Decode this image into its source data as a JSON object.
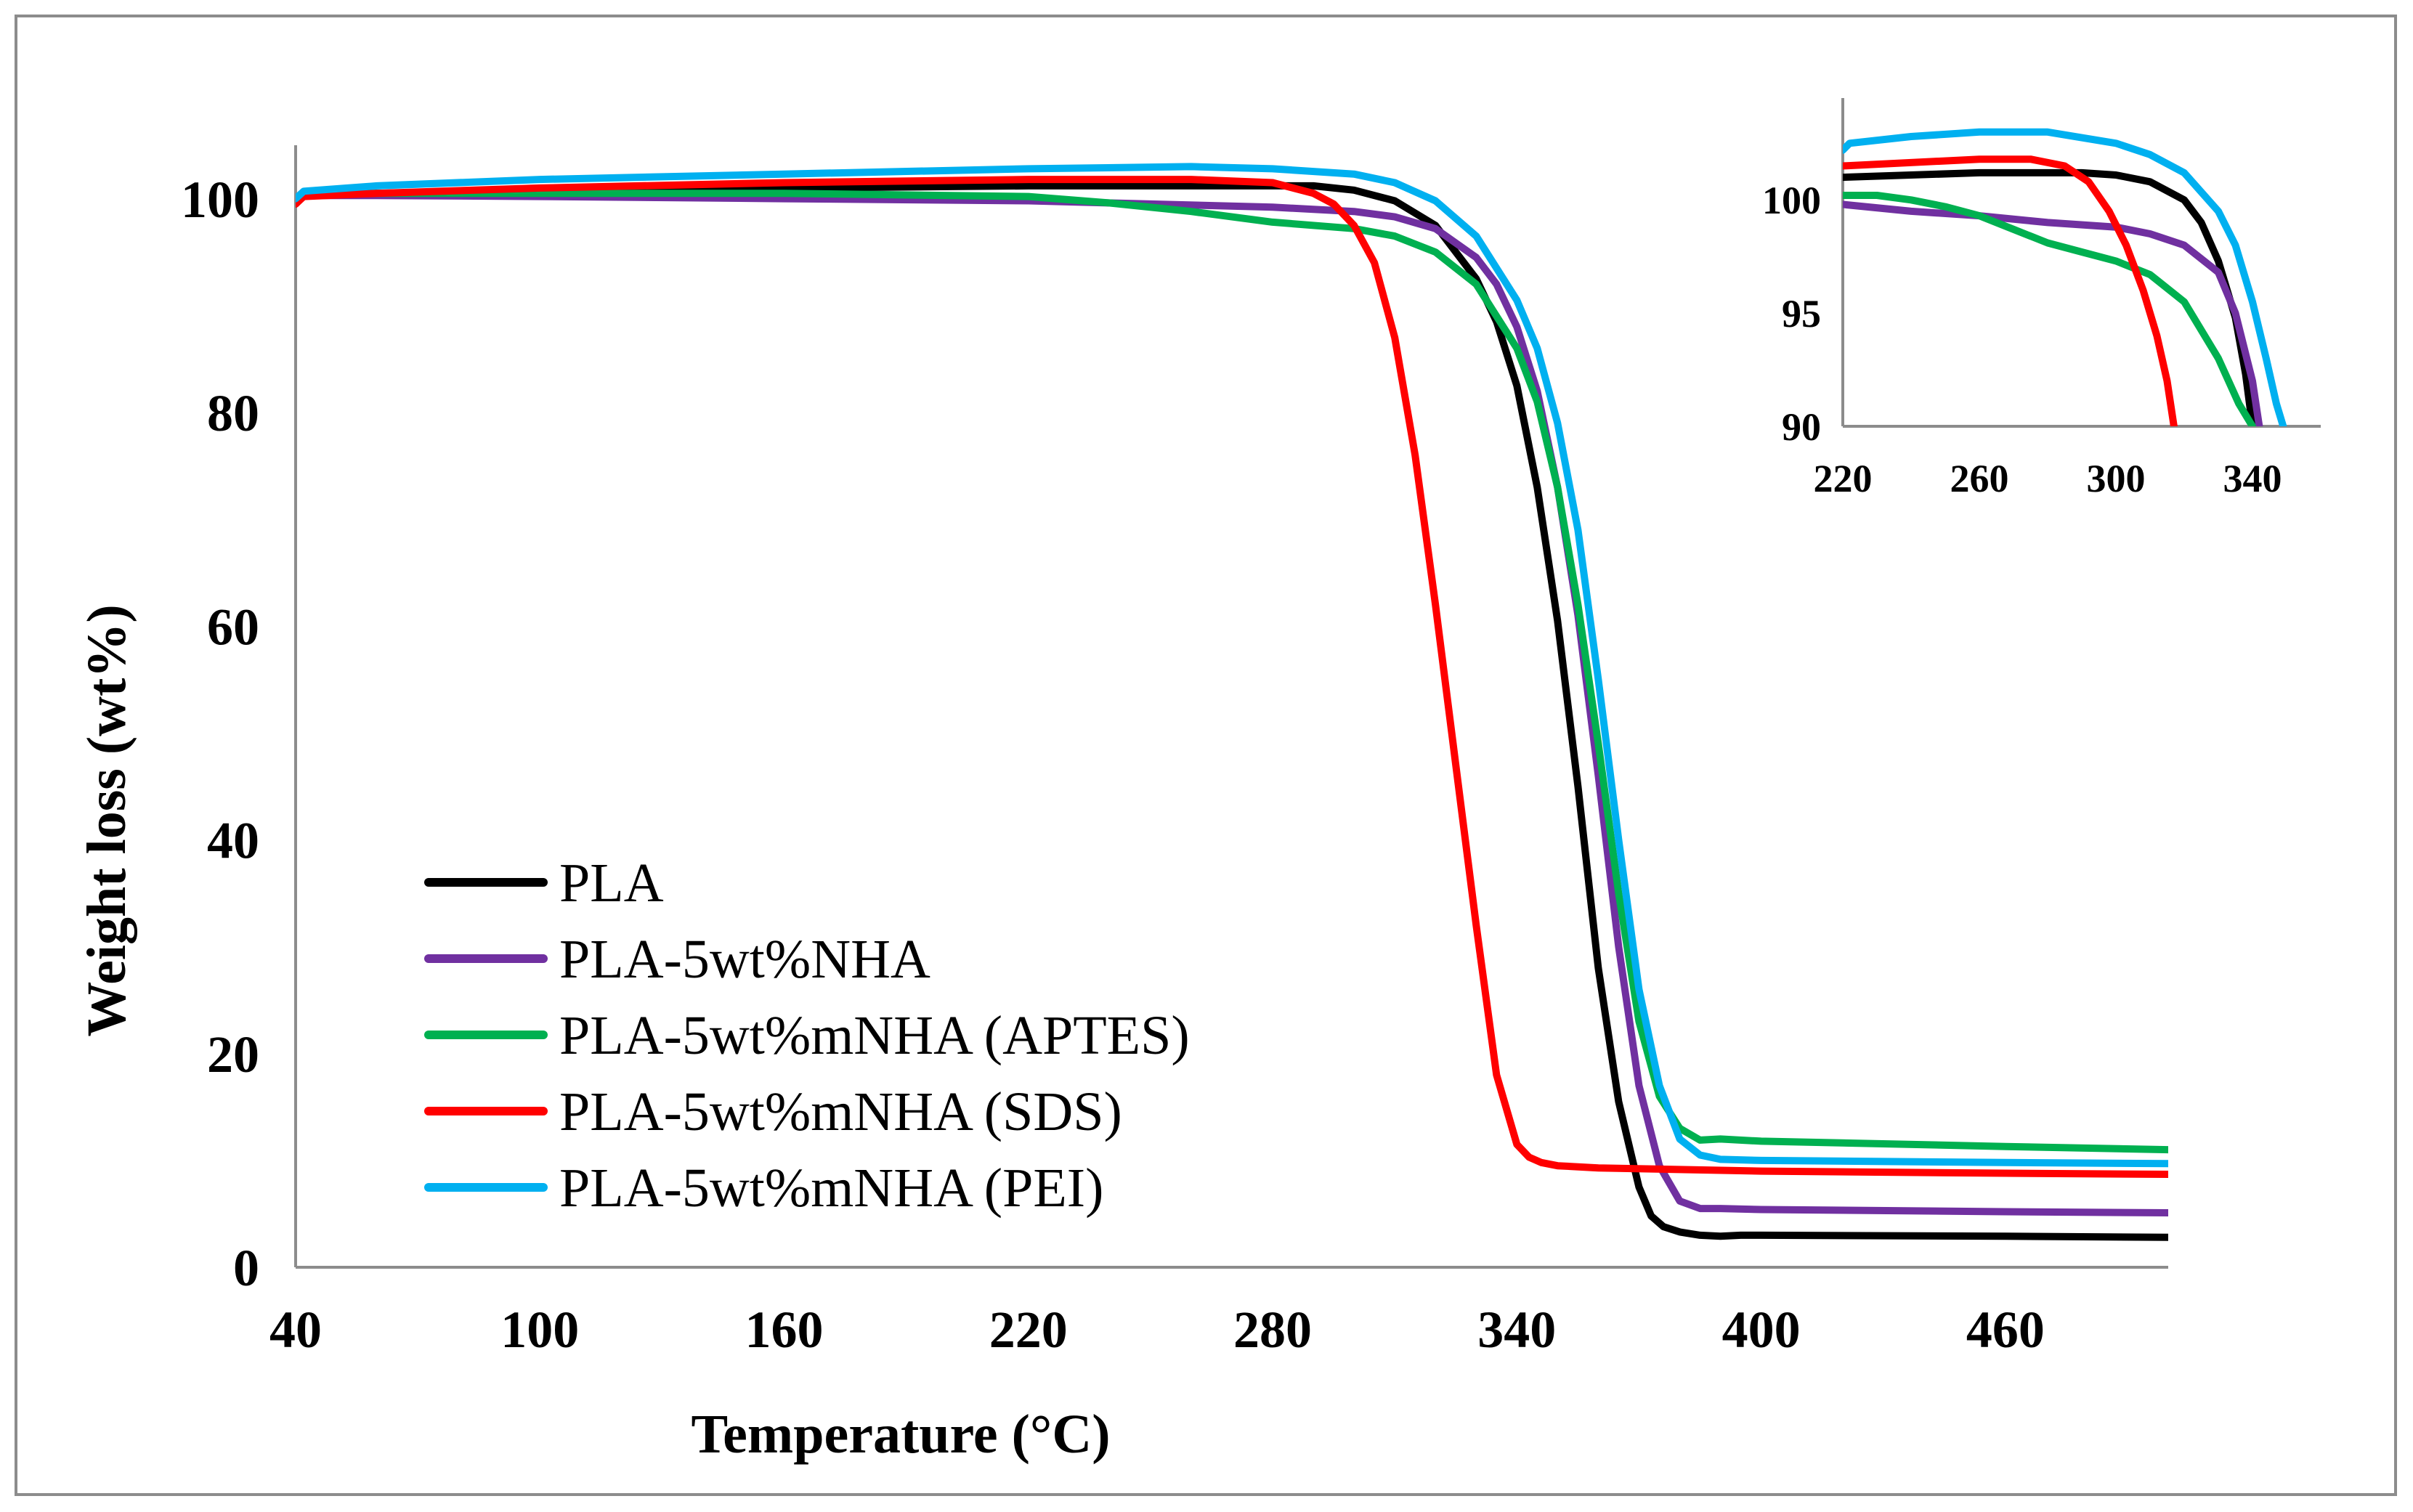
{
  "chart_data": [
    {
      "type": "line",
      "title": "",
      "xlabel": "Temperature (°C)",
      "ylabel": "Weight loss (wt%)",
      "xlim": [
        40,
        500
      ],
      "ylim": [
        0,
        105
      ],
      "x_ticks": [
        40,
        100,
        160,
        220,
        280,
        340,
        400,
        460
      ],
      "y_ticks": [
        0,
        20,
        40,
        60,
        80,
        100
      ],
      "grid": false,
      "legend_position": "bottom-left",
      "series": [
        {
          "name": "PLA",
          "color": "#000000",
          "x": [
            40,
            42,
            60,
            100,
            160,
            220,
            260,
            290,
            300,
            310,
            320,
            330,
            335,
            340,
            345,
            350,
            355,
            360,
            365,
            370,
            373,
            376,
            380,
            385,
            390,
            395,
            400,
            460,
            500
          ],
          "y": [
            99.5,
            100.3,
            100.5,
            100.8,
            101.0,
            101.2,
            101.2,
            101.2,
            100.8,
            99.8,
            97.5,
            92.5,
            88.5,
            82.5,
            73.0,
            60.5,
            45.0,
            28.0,
            15.5,
            7.5,
            4.8,
            3.8,
            3.3,
            3.0,
            2.9,
            3.0,
            3.0,
            2.9,
            2.8
          ]
        },
        {
          "name": "PLA-5wt%NHA",
          "color": "#7030A0",
          "x": [
            40,
            42,
            60,
            100,
            160,
            220,
            250,
            280,
            300,
            310,
            320,
            330,
            335,
            340,
            345,
            350,
            355,
            360,
            365,
            370,
            375,
            380,
            385,
            390,
            400,
            460,
            500
          ],
          "y": [
            99.5,
            100.3,
            100.3,
            100.2,
            100.0,
            99.8,
            99.5,
            99.2,
            98.8,
            98.3,
            97.2,
            94.5,
            92.0,
            88.0,
            82.0,
            73.0,
            61.0,
            46.0,
            30.0,
            17.0,
            9.5,
            6.2,
            5.5,
            5.5,
            5.4,
            5.2,
            5.1
          ]
        },
        {
          "name": "PLA-5wt%mNHA (APTES)",
          "color": "#00B050",
          "x": [
            40,
            42,
            60,
            100,
            160,
            220,
            240,
            260,
            280,
            300,
            310,
            320,
            330,
            340,
            345,
            350,
            355,
            360,
            365,
            370,
            375,
            380,
            385,
            390,
            400,
            460,
            500
          ],
          "y": [
            99.8,
            100.4,
            100.5,
            100.5,
            100.5,
            100.2,
            99.6,
            98.8,
            97.8,
            97.2,
            96.5,
            95.0,
            92.0,
            86.0,
            81.0,
            73.0,
            62.0,
            49.0,
            35.0,
            23.0,
            16.0,
            13.0,
            11.9,
            12.0,
            11.8,
            11.3,
            11.0
          ]
        },
        {
          "name": "PLA-5wt%mNHA (SDS)",
          "color": "#FF0000",
          "x": [
            40,
            42,
            60,
            100,
            160,
            220,
            260,
            280,
            290,
            295,
            300,
            305,
            310,
            315,
            320,
            325,
            330,
            335,
            340,
            343,
            346,
            350,
            360,
            400,
            460,
            500
          ],
          "y": [
            99.5,
            100.2,
            100.5,
            101.0,
            101.5,
            101.8,
            101.8,
            101.5,
            100.5,
            99.5,
            97.5,
            94.0,
            87.0,
            76.0,
            62.0,
            47.0,
            32.0,
            18.0,
            11.5,
            10.3,
            9.8,
            9.5,
            9.3,
            9.0,
            8.8,
            8.7
          ]
        },
        {
          "name": "PLA-5wt%mNHA (PEI)",
          "color": "#00B0F0",
          "x": [
            40,
            42,
            60,
            100,
            160,
            220,
            260,
            280,
            300,
            310,
            320,
            330,
            340,
            345,
            350,
            355,
            360,
            365,
            370,
            375,
            380,
            385,
            390,
            400,
            460,
            500
          ],
          "y": [
            100.0,
            100.7,
            101.2,
            101.8,
            102.3,
            102.8,
            103.0,
            102.8,
            102.3,
            101.5,
            99.8,
            96.5,
            90.5,
            86.0,
            79.0,
            69.0,
            55.0,
            40.0,
            26.0,
            17.0,
            12.0,
            10.5,
            10.1,
            10.0,
            9.8,
            9.7
          ]
        }
      ]
    },
    {
      "type": "line",
      "title": "",
      "xlabel": "",
      "ylabel": "",
      "xlim": [
        220,
        360
      ],
      "ylim": [
        90,
        104.5
      ],
      "x_ticks": [
        220,
        260,
        300,
        340
      ],
      "y_ticks": [
        90,
        95,
        100
      ],
      "grid": false,
      "legend_position": "none",
      "series": [
        {
          "color": "#000000",
          "x": [
            220,
            260,
            290,
            300,
            310,
            320,
            325,
            330,
            335,
            338,
            340
          ],
          "y": [
            101.0,
            101.2,
            101.2,
            101.1,
            100.8,
            100.0,
            99.0,
            97.3,
            94.8,
            92.3,
            90.0
          ]
        },
        {
          "color": "#7030A0",
          "x": [
            220,
            240,
            260,
            280,
            300,
            310,
            320,
            330,
            335,
            340,
            342
          ],
          "y": [
            99.8,
            99.5,
            99.3,
            99.0,
            98.8,
            98.5,
            98.0,
            96.8,
            95.0,
            92.0,
            90.0
          ]
        },
        {
          "color": "#00B050",
          "x": [
            220,
            230,
            240,
            250,
            260,
            270,
            280,
            290,
            300,
            310,
            320,
            330,
            336,
            340
          ],
          "y": [
            100.2,
            100.2,
            100.0,
            99.7,
            99.3,
            98.7,
            98.1,
            97.7,
            97.3,
            96.7,
            95.5,
            93.0,
            91.0,
            90.0
          ]
        },
        {
          "color": "#FF0000",
          "x": [
            220,
            260,
            275,
            285,
            292,
            298,
            303,
            308,
            312,
            315,
            317
          ],
          "y": [
            101.5,
            101.8,
            101.8,
            101.5,
            100.8,
            99.5,
            98.0,
            96.0,
            94.0,
            92.0,
            90.0
          ]
        },
        {
          "color": "#00B0F0",
          "x": [
            220,
            222,
            240,
            260,
            280,
            300,
            310,
            320,
            330,
            335,
            340,
            344,
            347,
            349
          ],
          "y": [
            102.2,
            102.5,
            102.8,
            103.0,
            103.0,
            102.5,
            102.0,
            101.2,
            99.5,
            98.0,
            95.5,
            93.0,
            91.0,
            90.0
          ]
        }
      ]
    }
  ]
}
